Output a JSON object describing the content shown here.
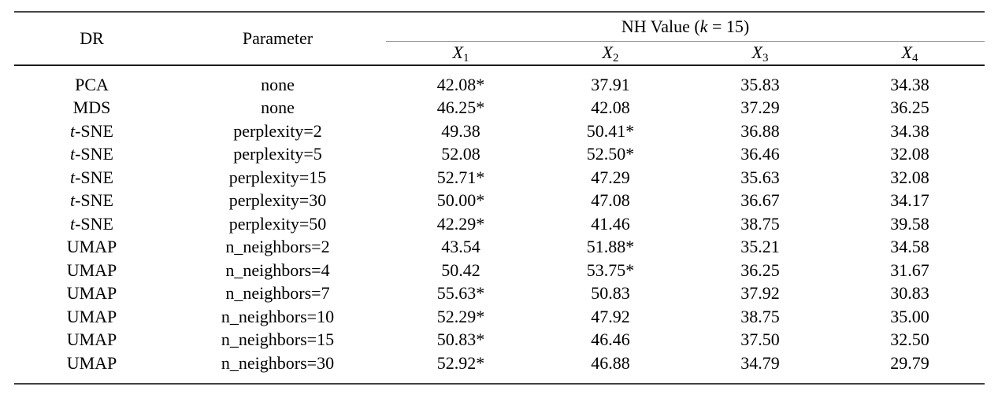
{
  "figure": {
    "type": "academic-paper-results-table",
    "colors": {
      "background": "#ffffff",
      "text": "#000000",
      "rule_top": "#474747",
      "rule_heavy": "#1c1c1c",
      "rule_light": "#8a8a8a",
      "rule_bottom": "#414141"
    }
  },
  "table": {
    "header": {
      "dr": "DR",
      "parameter": "Parameter",
      "group": {
        "pre": "NH Value (",
        "k": "k",
        "post": " = 15)"
      }
    },
    "columns": [
      {
        "base": "X",
        "sub": "1"
      },
      {
        "base": "X",
        "sub": "2"
      },
      {
        "base": "X",
        "sub": "3"
      },
      {
        "base": "X",
        "sub": "4"
      }
    ],
    "row_keys": [
      "dr",
      "parameter",
      "x1",
      "x2",
      "x3",
      "x4"
    ],
    "rows": [
      {
        "dr": "PCA",
        "parameter": "none",
        "x1": "42.08*",
        "x2": "37.91",
        "x3": "35.83",
        "x4": "34.38"
      },
      {
        "dr": "MDS",
        "parameter": "none",
        "x1": "46.25*",
        "x2": "42.08",
        "x3": "37.29",
        "x4": "36.25"
      },
      {
        "dr": "t-SNE",
        "parameter": "perplexity=2",
        "x1": "49.38",
        "x2": "50.41*",
        "x3": "36.88",
        "x4": "34.38"
      },
      {
        "dr": "t-SNE",
        "parameter": "perplexity=5",
        "x1": "52.08",
        "x2": "52.50*",
        "x3": "36.46",
        "x4": "32.08"
      },
      {
        "dr": "t-SNE",
        "parameter": "perplexity=15",
        "x1": "52.71*",
        "x2": "47.29",
        "x3": "35.63",
        "x4": "32.08"
      },
      {
        "dr": "t-SNE",
        "parameter": "perplexity=30",
        "x1": "50.00*",
        "x2": "47.08",
        "x3": "36.67",
        "x4": "34.17"
      },
      {
        "dr": "t-SNE",
        "parameter": "perplexity=50",
        "x1": "42.29*",
        "x2": "41.46",
        "x3": "38.75",
        "x4": "39.58"
      },
      {
        "dr": "UMAP",
        "parameter": "n_neighbors=2",
        "x1": "43.54",
        "x2": "51.88*",
        "x3": "35.21",
        "x4": "34.58"
      },
      {
        "dr": "UMAP",
        "parameter": "n_neighbors=4",
        "x1": "50.42",
        "x2": "53.75*",
        "x3": "36.25",
        "x4": "31.67"
      },
      {
        "dr": "UMAP",
        "parameter": "n_neighbors=7",
        "x1": "55.63*",
        "x2": "50.83",
        "x3": "37.92",
        "x4": "30.83"
      },
      {
        "dr": "UMAP",
        "parameter": "n_neighbors=10",
        "x1": "52.29*",
        "x2": "47.92",
        "x3": "38.75",
        "x4": "35.00"
      },
      {
        "dr": "UMAP",
        "parameter": "n_neighbors=15",
        "x1": "50.83*",
        "x2": "46.46",
        "x3": "37.50",
        "x4": "32.50"
      },
      {
        "dr": "UMAP",
        "parameter": "n_neighbors=30",
        "x1": "52.92*",
        "x2": "46.88",
        "x3": "34.79",
        "x4": "29.79"
      }
    ]
  }
}
